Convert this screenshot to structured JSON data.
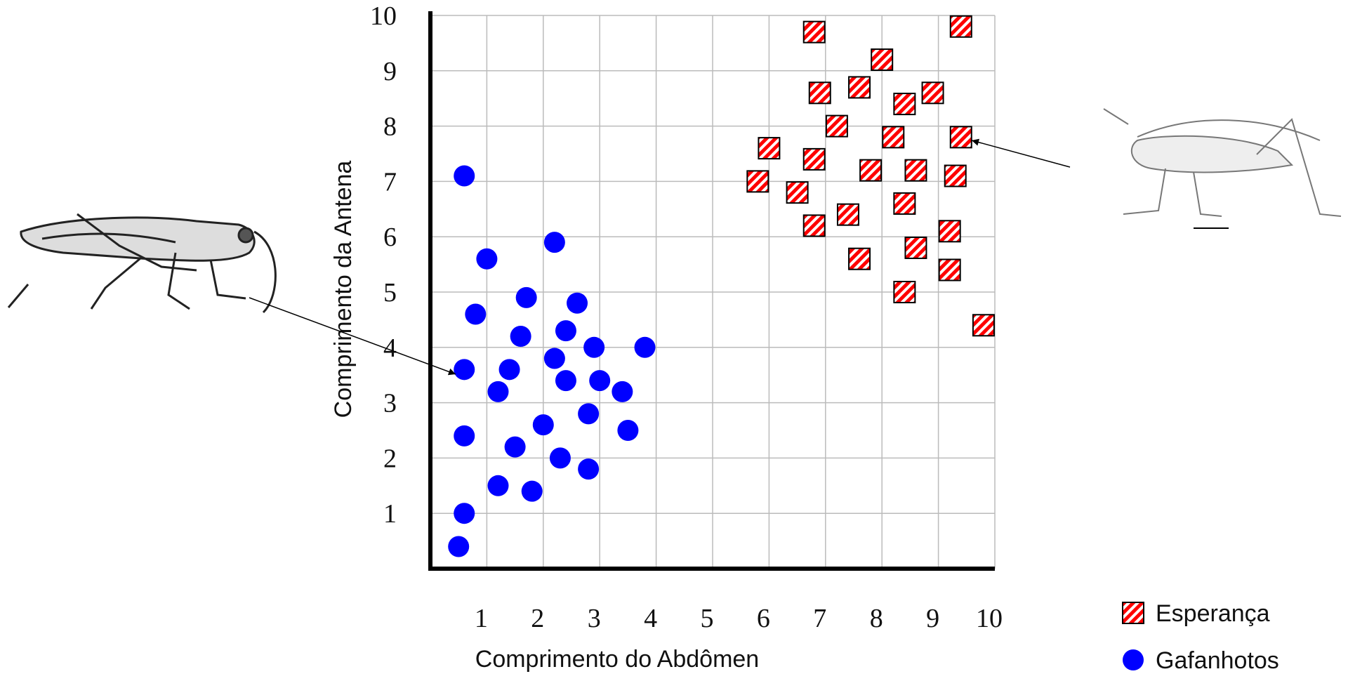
{
  "chart_data": {
    "type": "scatter",
    "x_label": "Comprimento do Abdômen",
    "y_label": "Comprimento da Antena",
    "xlim": [
      0,
      10
    ],
    "ylim": [
      0,
      10
    ],
    "xticks": [
      1,
      2,
      3,
      4,
      5,
      6,
      7,
      8,
      9,
      10
    ],
    "yticks": [
      1,
      2,
      3,
      4,
      5,
      6,
      7,
      8,
      9,
      10
    ],
    "grid": true,
    "legend": "lower right",
    "series": [
      {
        "name": "Esperança",
        "color": "#ff0000",
        "marker": "square",
        "x": [
          6.8,
          9.4,
          8.0,
          6.9,
          7.6,
          8.4,
          8.9,
          7.2,
          8.2,
          9.4,
          6.0,
          6.8,
          7.8,
          8.6,
          9.3,
          5.8,
          6.5,
          8.4,
          7.4,
          6.8,
          9.2,
          8.6,
          7.6,
          9.2,
          8.4,
          9.8
        ],
        "y": [
          9.7,
          9.8,
          9.2,
          8.6,
          8.7,
          8.4,
          8.6,
          8.0,
          7.8,
          7.8,
          7.6,
          7.4,
          7.2,
          7.2,
          7.1,
          7.0,
          6.8,
          6.6,
          6.4,
          6.2,
          6.1,
          5.8,
          5.6,
          5.4,
          5.0,
          4.4
        ]
      },
      {
        "name": "Gafanhotos",
        "color": "#0000ff",
        "marker": "circle",
        "x": [
          0.6,
          1.0,
          0.8,
          0.6,
          1.2,
          1.4,
          1.7,
          1.6,
          2.2,
          2.6,
          2.4,
          2.2,
          2.4,
          2.9,
          3.0,
          3.4,
          3.8,
          2.8,
          3.5,
          2.0,
          1.5,
          2.3,
          2.8,
          1.2,
          1.8,
          0.6,
          0.6,
          0.5
        ],
        "y": [
          7.1,
          5.6,
          4.6,
          3.6,
          3.2,
          3.6,
          4.9,
          4.2,
          5.9,
          4.8,
          4.3,
          3.8,
          3.4,
          4.0,
          3.4,
          3.2,
          4.0,
          2.8,
          2.5,
          2.6,
          2.2,
          2.0,
          1.8,
          1.5,
          1.4,
          2.4,
          1.0,
          0.4
        ]
      }
    ]
  }
}
